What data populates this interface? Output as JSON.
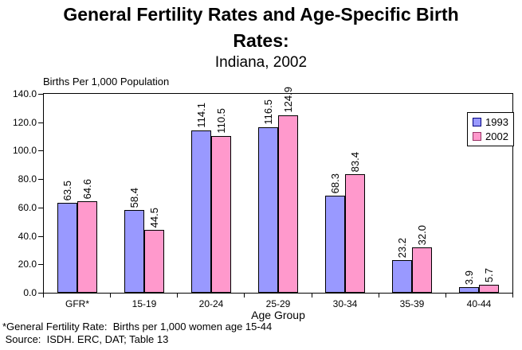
{
  "title": "General Fertility Rates and Age-Specific Birth Rates:",
  "subtitle": "Indiana, 2002",
  "footnotes": [
    "*General Fertility Rate:  Births per 1,000 women age 15-44",
    " Source:  ISDH. ERC, DAT; Table 13"
  ],
  "colors": {
    "series_1993_fill": "#9999FF",
    "series_2002_fill": "#FF99CC",
    "bar_border": "#000000",
    "axis": "#000000",
    "background": "#FFFFFF",
    "legend_marker_border_1993": "#000080",
    "legend_marker_border_2002": "#993366"
  },
  "chart_data": {
    "type": "bar",
    "title": "General Fertility Rates and Age-Specific Birth Rates: Indiana, 2002",
    "categories": [
      "GFR*",
      "15-19",
      "20-24",
      "25-29",
      "30-34",
      "35-39",
      "40-44"
    ],
    "series": [
      {
        "name": "1993",
        "color": "#9999FF",
        "marker_border": "#000080",
        "values": [
          63.5,
          58.4,
          114.1,
          116.5,
          68.3,
          23.2,
          3.9
        ]
      },
      {
        "name": "2002",
        "color": "#FF99CC",
        "marker_border": "#993366",
        "values": [
          64.6,
          44.5,
          110.5,
          124.9,
          83.4,
          32.0,
          5.7
        ]
      }
    ],
    "xlabel": "Age Group",
    "ylabel": "Births Per 1,000 Population",
    "ylim": [
      0,
      140
    ],
    "ytick_step": 20,
    "ytick_format_decimals": 1,
    "grid": false,
    "legend_position": "inside-top-right",
    "data_labels": "rotated-90-above-bars"
  }
}
